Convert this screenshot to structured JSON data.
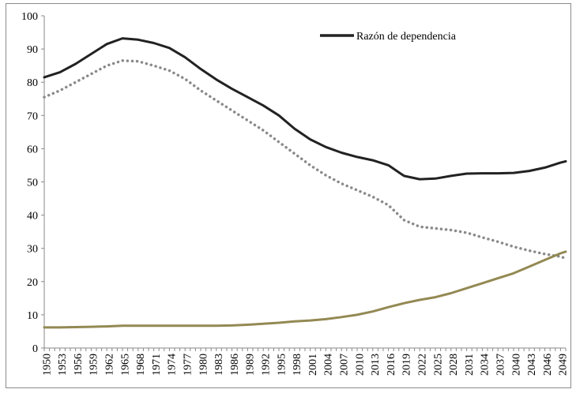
{
  "chart_data": {
    "type": "line",
    "title": "",
    "xlabel": "",
    "ylabel": "",
    "ylim": [
      0,
      100
    ],
    "xlim": [
      1950,
      2050
    ],
    "yticks": [
      0,
      10,
      20,
      30,
      40,
      50,
      60,
      70,
      80,
      90,
      100
    ],
    "xtick_labels": [
      "1950",
      "1953",
      "1956",
      "1959",
      "1962",
      "1965",
      "1968",
      "1971",
      "1974",
      "1977",
      "1980",
      "1983",
      "1986",
      "1989",
      "1992",
      "1995",
      "1998",
      "2001",
      "2004",
      "2007",
      "2010",
      "2013",
      "2016",
      "2019",
      "2022",
      "2025",
      "2028",
      "2031",
      "2034",
      "2037",
      "2040",
      "2043",
      "2046",
      "2049"
    ],
    "grid": false,
    "legend": {
      "placement": "top-right",
      "entries": [
        "Razón de dependencia"
      ]
    },
    "x": [
      1950,
      1953,
      1956,
      1959,
      1962,
      1965,
      1968,
      1971,
      1974,
      1977,
      1980,
      1983,
      1986,
      1989,
      1992,
      1995,
      1998,
      2001,
      2004,
      2007,
      2010,
      2013,
      2016,
      2019,
      2022,
      2025,
      2028,
      2031,
      2034,
      2037,
      2040,
      2043,
      2046,
      2049,
      2050
    ],
    "series": [
      {
        "name": "Razón de dependencia",
        "color": "#222222",
        "style": "solid",
        "values": [
          81.5,
          83,
          85.5,
          88.5,
          91.5,
          93.2,
          92.8,
          91.8,
          90.3,
          87.5,
          84,
          80.8,
          78,
          75.5,
          73,
          70,
          66,
          62.8,
          60.5,
          58.8,
          57.5,
          56.5,
          55,
          51.8,
          50.8,
          51,
          51.8,
          52.5,
          52.6,
          52.6,
          52.7,
          53.3,
          54.3,
          55.8,
          56.2
        ]
      },
      {
        "name": "",
        "color": "#8a8a8a",
        "style": "dotted",
        "values": [
          75.5,
          77.5,
          80,
          82.5,
          85,
          86.5,
          86.3,
          85,
          83.5,
          81,
          77.5,
          74.5,
          71.5,
          68.5,
          65.5,
          62,
          58.5,
          55,
          52,
          49.5,
          47.5,
          45.5,
          43,
          38.5,
          36.5,
          36,
          35.5,
          34.7,
          33.3,
          32,
          30.5,
          29.3,
          28.3,
          27.5,
          27
        ]
      },
      {
        "name": "",
        "color": "#938953",
        "style": "solid",
        "values": [
          6.2,
          6.2,
          6.3,
          6.4,
          6.5,
          6.7,
          6.7,
          6.7,
          6.7,
          6.7,
          6.7,
          6.7,
          6.8,
          7,
          7.3,
          7.6,
          8,
          8.3,
          8.7,
          9.3,
          10,
          11,
          12.3,
          13.5,
          14.5,
          15.3,
          16.5,
          18,
          19.5,
          21,
          22.5,
          24.5,
          26.5,
          28.5,
          29
        ]
      }
    ]
  }
}
